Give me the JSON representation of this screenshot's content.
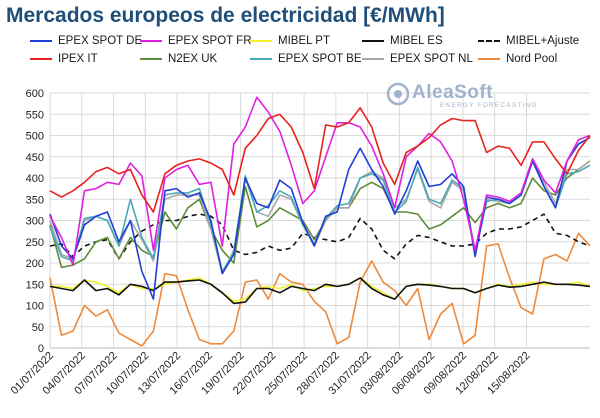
{
  "title": "Mercados europeos de electricidad [€/MWh]",
  "watermark": {
    "name": "AleaSoft",
    "subtitle": "ENERGY FORECASTING"
  },
  "legend": [
    {
      "name": "EPEX SPOT DE",
      "color": "#1f3fd6",
      "dash": false
    },
    {
      "name": "EPEX SPOT FR",
      "color": "#e020e0",
      "dash": false
    },
    {
      "name": "MIBEL PT",
      "color": "#f2f227",
      "dash": false
    },
    {
      "name": "MIBEL ES",
      "color": "#111111",
      "dash": false
    },
    {
      "name": "MIBEL+Ajuste",
      "color": "#111111",
      "dash": true
    },
    {
      "name": "IPEX IT",
      "color": "#e8231f",
      "dash": false
    },
    {
      "name": "N2EX UK",
      "color": "#5e8c3a",
      "dash": false
    },
    {
      "name": "EPEX SPOT BE",
      "color": "#4aa8b8",
      "dash": false
    },
    {
      "name": "EPEX SPOT NL",
      "color": "#a8a8a8",
      "dash": false
    },
    {
      "name": "Nord Pool",
      "color": "#ee8a3c",
      "dash": false
    }
  ],
  "chart_data": {
    "type": "line",
    "title": "Mercados europeos de electricidad [€/MWh]",
    "xlabel": "",
    "ylabel": "",
    "ylim": [
      0,
      600
    ],
    "yticks": [
      0,
      50,
      100,
      150,
      200,
      250,
      300,
      350,
      400,
      450,
      500,
      550,
      600
    ],
    "grid": true,
    "x_start": "2022-07-01",
    "x_end": "2022-08-21",
    "xtick_labels": [
      "01/07/2022",
      "04/07/2022",
      "07/07/2022",
      "10/07/2022",
      "13/07/2022",
      "16/07/2022",
      "19/07/2022",
      "22/07/2022",
      "25/07/2022",
      "28/07/2022",
      "31/07/2022",
      "03/08/2022",
      "06/08/2022",
      "09/08/2022",
      "12/08/2022",
      "15/08/2022"
    ],
    "series": [
      {
        "name": "Nord Pool",
        "color": "#ee8a3c",
        "dash": false,
        "values": [
          165,
          30,
          40,
          100,
          75,
          90,
          35,
          20,
          5,
          40,
          175,
          170,
          90,
          20,
          10,
          10,
          40,
          155,
          160,
          115,
          175,
          155,
          150,
          110,
          85,
          10,
          25,
          155,
          205,
          155,
          135,
          100,
          140,
          20,
          80,
          105,
          10,
          30,
          240,
          245,
          165,
          95,
          80,
          210,
          220,
          205,
          270,
          240
        ]
      },
      {
        "name": "MIBEL PT",
        "color": "#f2f227",
        "dash": false,
        "values": [
          145,
          145,
          140,
          160,
          155,
          145,
          130,
          150,
          140,
          140,
          150,
          155,
          160,
          165,
          150,
          130,
          110,
          115,
          140,
          145,
          140,
          150,
          135,
          140,
          145,
          145,
          150,
          165,
          145,
          130,
          115,
          145,
          150,
          150,
          145,
          140,
          140,
          130,
          140,
          150,
          145,
          150,
          155,
          150,
          150,
          150,
          155,
          145
        ]
      },
      {
        "name": "MIBEL ES",
        "color": "#111111",
        "dash": false,
        "values": [
          145,
          140,
          135,
          160,
          135,
          140,
          125,
          150,
          145,
          135,
          155,
          155,
          158,
          160,
          150,
          130,
          105,
          108,
          140,
          140,
          130,
          145,
          140,
          135,
          150,
          145,
          150,
          165,
          140,
          125,
          115,
          145,
          150,
          148,
          145,
          140,
          140,
          130,
          140,
          148,
          143,
          145,
          150,
          155,
          150,
          150,
          148,
          145
        ]
      },
      {
        "name": "MIBEL+Ajuste",
        "color": "#111111",
        "dash": true,
        "values": [
          240,
          245,
          215,
          240,
          250,
          255,
          210,
          250,
          275,
          290,
          300,
          300,
          310,
          315,
          310,
          290,
          230,
          220,
          225,
          240,
          230,
          235,
          270,
          260,
          255,
          250,
          260,
          305,
          280,
          230,
          210,
          245,
          265,
          260,
          250,
          240,
          240,
          245,
          270,
          280,
          280,
          285,
          300,
          315,
          270,
          265,
          250,
          240
        ]
      },
      {
        "name": "N2EX UK",
        "color": "#5e8c3a",
        "dash": false,
        "values": [
          290,
          190,
          195,
          210,
          250,
          260,
          210,
          260,
          230,
          215,
          320,
          280,
          330,
          350,
          280,
          230,
          200,
          380,
          285,
          300,
          330,
          315,
          300,
          255,
          300,
          330,
          330,
          375,
          390,
          375,
          320,
          320,
          315,
          280,
          290,
          310,
          330,
          295,
          330,
          340,
          330,
          340,
          400,
          370,
          360,
          400,
          420,
          440
        ]
      },
      {
        "name": "EPEX SPOT NL",
        "color": "#a8a8a8",
        "dash": false,
        "values": [
          300,
          220,
          210,
          300,
          310,
          300,
          240,
          300,
          255,
          205,
          350,
          360,
          360,
          360,
          280,
          175,
          230,
          400,
          320,
          310,
          360,
          350,
          290,
          240,
          300,
          330,
          330,
          400,
          415,
          400,
          330,
          350,
          420,
          345,
          330,
          390,
          370,
          230,
          350,
          345,
          340,
          360,
          440,
          390,
          340,
          420,
          420,
          440
        ]
      },
      {
        "name": "EPEX SPOT BE",
        "color": "#4aa8b8",
        "dash": false,
        "values": [
          285,
          215,
          205,
          305,
          310,
          300,
          240,
          350,
          260,
          210,
          360,
          365,
          365,
          375,
          290,
          180,
          225,
          405,
          320,
          335,
          370,
          355,
          290,
          245,
          305,
          335,
          340,
          400,
          410,
          395,
          320,
          345,
          425,
          350,
          340,
          395,
          375,
          220,
          345,
          350,
          340,
          360,
          445,
          380,
          330,
          410,
          415,
          430
        ]
      },
      {
        "name": "EPEX SPOT DE",
        "color": "#1f3fd6",
        "dash": false,
        "values": [
          315,
          240,
          210,
          290,
          310,
          320,
          250,
          300,
          180,
          115,
          370,
          375,
          355,
          365,
          300,
          175,
          220,
          400,
          340,
          330,
          395,
          375,
          295,
          240,
          310,
          320,
          420,
          470,
          420,
          380,
          315,
          370,
          440,
          380,
          385,
          410,
          380,
          215,
          355,
          350,
          340,
          360,
          440,
          380,
          330,
          440,
          480,
          495
        ]
      },
      {
        "name": "EPEX SPOT FR",
        "color": "#e020e0",
        "dash": false,
        "values": [
          310,
          260,
          195,
          370,
          375,
          390,
          385,
          435,
          405,
          230,
          400,
          420,
          430,
          385,
          390,
          240,
          480,
          520,
          590,
          555,
          510,
          430,
          340,
          370,
          450,
          530,
          530,
          520,
          475,
          410,
          330,
          450,
          475,
          505,
          485,
          440,
          350,
          230,
          360,
          355,
          345,
          365,
          445,
          395,
          365,
          440,
          490,
          500
        ]
      },
      {
        "name": "IPEX IT",
        "color": "#e8231f",
        "dash": false,
        "values": [
          370,
          355,
          370,
          390,
          415,
          425,
          410,
          420,
          360,
          320,
          410,
          430,
          440,
          445,
          435,
          420,
          360,
          470,
          500,
          540,
          550,
          520,
          460,
          375,
          525,
          520,
          530,
          565,
          520,
          435,
          385,
          460,
          475,
          495,
          525,
          540,
          535,
          535,
          460,
          475,
          470,
          430,
          485,
          485,
          445,
          410,
          465,
          500
        ]
      }
    ]
  }
}
